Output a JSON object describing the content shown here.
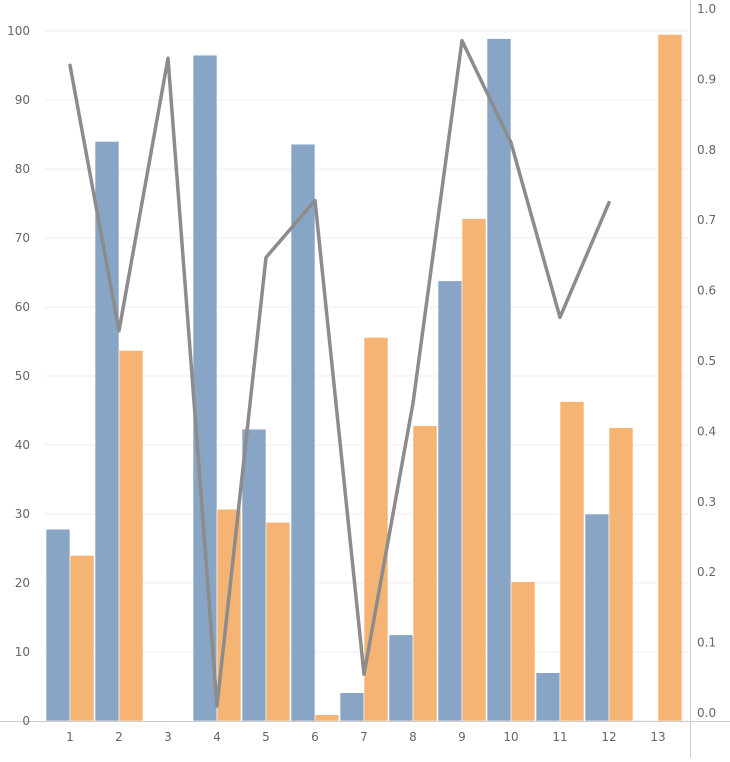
{
  "chart_data": {
    "type": "bar",
    "categories": [
      "1",
      "2",
      "3",
      "4",
      "5",
      "6",
      "7",
      "8",
      "9",
      "10",
      "11",
      "12",
      "13"
    ],
    "series": [
      {
        "type": "bar",
        "axis": "left",
        "color": "#7f9ec2",
        "values": [
          27.8,
          84.0,
          0.0,
          96.5,
          42.3,
          83.6,
          4.1,
          12.5,
          63.8,
          98.9,
          7.0,
          30.0,
          null
        ]
      },
      {
        "type": "bar",
        "axis": "left",
        "color": "#f5ae68",
        "values": [
          24.0,
          53.7,
          0.0,
          30.7,
          28.8,
          0.9,
          55.6,
          42.8,
          72.8,
          20.2,
          46.3,
          42.5,
          99.5
        ]
      },
      {
        "type": "line",
        "axis": "right",
        "color": "#8c8c8c",
        "values": [
          0.92,
          0.543,
          0.93,
          0.01,
          0.647,
          0.728,
          0.055,
          0.44,
          0.955,
          0.81,
          0.562,
          0.725,
          null
        ]
      }
    ],
    "y_left": {
      "ticks": [
        "0",
        "10",
        "20",
        "30",
        "40",
        "50",
        "60",
        "70",
        "80",
        "90",
        "100"
      ],
      "ylim": [
        0,
        103
      ]
    },
    "y_right": {
      "ticks": [
        "0.0",
        "0.1",
        "0.2",
        "0.3",
        "0.4",
        "0.5",
        "0.6",
        "0.7",
        "0.8",
        "0.9",
        "1.0"
      ],
      "ylim": [
        0,
        1.0
      ]
    },
    "grid": true,
    "title": "",
    "xlabel": "",
    "ylabel": ""
  }
}
